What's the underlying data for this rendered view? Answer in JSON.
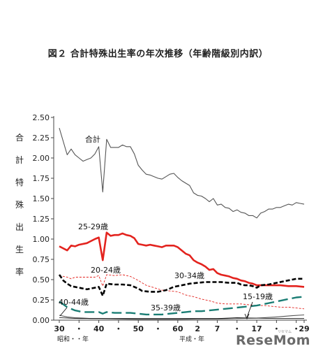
{
  "title": "図２ 合計特殊出生率の年次推移（年齢階級別内訳）",
  "logo": "ReseMom",
  "logo_sub": "リセマム",
  "chart_data": {
    "type": "line",
    "title": "図２ 合計特殊出生率の年次推移（年齢階級別内訳）",
    "ylabel_chars": [
      "合",
      "計",
      "特",
      "殊",
      "出",
      "生",
      "率"
    ],
    "ylim": [
      0,
      2.5
    ],
    "yticks": [
      "0.00",
      "0.25",
      "0.50",
      "0.75",
      "1.00",
      "1.25",
      "1.50",
      "1.75",
      "2.00",
      "2.25",
      "2.50"
    ],
    "x_ticks": [
      {
        "year": 1955,
        "label": "30"
      },
      {
        "year": 1960,
        "label": "・"
      },
      {
        "year": 1965,
        "label": "40"
      },
      {
        "year": 1970,
        "label": "・"
      },
      {
        "year": 1975,
        "label": "50"
      },
      {
        "year": 1980,
        "label": "・"
      },
      {
        "year": 1985,
        "label": "60"
      },
      {
        "year": 1990,
        "label": "2"
      },
      {
        "year": 1995,
        "label": "7"
      },
      {
        "year": 2000,
        "label": "・"
      },
      {
        "year": 2005,
        "label": "17"
      },
      {
        "year": 2010,
        "label": "・"
      },
      {
        "year": 2015,
        "label": "・"
      },
      {
        "year": 2017,
        "label": "29"
      }
    ],
    "era_labels": {
      "showa": "昭和・・年",
      "heisei": "平成・年"
    },
    "xlim": [
      1955,
      2017
    ],
    "series": [
      {
        "name": "合計",
        "color": "#555555",
        "style": "solid-thin",
        "points": [
          [
            1955,
            2.37
          ],
          [
            1957,
            2.04
          ],
          [
            1958,
            2.11
          ],
          [
            1959,
            2.04
          ],
          [
            1960,
            2.0
          ],
          [
            1961,
            1.96
          ],
          [
            1962,
            1.98
          ],
          [
            1963,
            2.0
          ],
          [
            1964,
            2.05
          ],
          [
            1965,
            2.14
          ],
          [
            1966,
            1.58
          ],
          [
            1967,
            2.23
          ],
          [
            1968,
            2.13
          ],
          [
            1969,
            2.13
          ],
          [
            1970,
            2.13
          ],
          [
            1971,
            2.16
          ],
          [
            1972,
            2.14
          ],
          [
            1973,
            2.14
          ],
          [
            1974,
            2.05
          ],
          [
            1975,
            1.91
          ],
          [
            1976,
            1.85
          ],
          [
            1977,
            1.8
          ],
          [
            1978,
            1.79
          ],
          [
            1979,
            1.77
          ],
          [
            1980,
            1.75
          ],
          [
            1981,
            1.74
          ],
          [
            1982,
            1.77
          ],
          [
            1983,
            1.8
          ],
          [
            1984,
            1.81
          ],
          [
            1985,
            1.76
          ],
          [
            1986,
            1.72
          ],
          [
            1987,
            1.69
          ],
          [
            1988,
            1.66
          ],
          [
            1989,
            1.57
          ],
          [
            1990,
            1.54
          ],
          [
            1991,
            1.53
          ],
          [
            1992,
            1.5
          ],
          [
            1993,
            1.46
          ],
          [
            1994,
            1.5
          ],
          [
            1995,
            1.42
          ],
          [
            1996,
            1.43
          ],
          [
            1997,
            1.39
          ],
          [
            1998,
            1.38
          ],
          [
            1999,
            1.34
          ],
          [
            2000,
            1.36
          ],
          [
            2001,
            1.33
          ],
          [
            2002,
            1.32
          ],
          [
            2003,
            1.29
          ],
          [
            2004,
            1.29
          ],
          [
            2005,
            1.26
          ],
          [
            2006,
            1.32
          ],
          [
            2007,
            1.34
          ],
          [
            2008,
            1.37
          ],
          [
            2009,
            1.37
          ],
          [
            2010,
            1.39
          ],
          [
            2011,
            1.39
          ],
          [
            2012,
            1.41
          ],
          [
            2013,
            1.43
          ],
          [
            2014,
            1.42
          ],
          [
            2015,
            1.45
          ],
          [
            2016,
            1.44
          ],
          [
            2017,
            1.43
          ]
        ]
      },
      {
        "name": "25-29歳",
        "color": "#e3231e",
        "style": "solid-thick",
        "points": [
          [
            1955,
            0.91
          ],
          [
            1957,
            0.86
          ],
          [
            1958,
            0.92
          ],
          [
            1959,
            0.91
          ],
          [
            1960,
            0.93
          ],
          [
            1962,
            0.95
          ],
          [
            1964,
            1.0
          ],
          [
            1965,
            1.02
          ],
          [
            1966,
            0.74
          ],
          [
            1967,
            1.08
          ],
          [
            1968,
            1.04
          ],
          [
            1969,
            1.05
          ],
          [
            1970,
            1.05
          ],
          [
            1971,
            1.07
          ],
          [
            1972,
            1.05
          ],
          [
            1973,
            1.04
          ],
          [
            1974,
            1.01
          ],
          [
            1975,
            0.94
          ],
          [
            1976,
            0.93
          ],
          [
            1977,
            0.92
          ],
          [
            1978,
            0.93
          ],
          [
            1979,
            0.92
          ],
          [
            1980,
            0.91
          ],
          [
            1981,
            0.9
          ],
          [
            1982,
            0.92
          ],
          [
            1983,
            0.92
          ],
          [
            1984,
            0.92
          ],
          [
            1985,
            0.9
          ],
          [
            1986,
            0.86
          ],
          [
            1987,
            0.82
          ],
          [
            1988,
            0.8
          ],
          [
            1989,
            0.74
          ],
          [
            1990,
            0.71
          ],
          [
            1991,
            0.69
          ],
          [
            1992,
            0.66
          ],
          [
            1993,
            0.62
          ],
          [
            1994,
            0.63
          ],
          [
            1995,
            0.58
          ],
          [
            1996,
            0.56
          ],
          [
            1997,
            0.55
          ],
          [
            1998,
            0.54
          ],
          [
            1999,
            0.52
          ],
          [
            2000,
            0.51
          ],
          [
            2001,
            0.49
          ],
          [
            2002,
            0.48
          ],
          [
            2003,
            0.46
          ],
          [
            2004,
            0.45
          ],
          [
            2005,
            0.43
          ],
          [
            2007,
            0.43
          ],
          [
            2009,
            0.43
          ],
          [
            2011,
            0.43
          ],
          [
            2013,
            0.42
          ],
          [
            2015,
            0.42
          ],
          [
            2017,
            0.41
          ]
        ]
      },
      {
        "name": "20-24歳",
        "color": "#e3231e",
        "style": "dashed-thin",
        "points": [
          [
            1955,
            0.55
          ],
          [
            1957,
            0.53
          ],
          [
            1958,
            0.51
          ],
          [
            1959,
            0.53
          ],
          [
            1960,
            0.53
          ],
          [
            1962,
            0.53
          ],
          [
            1964,
            0.53
          ],
          [
            1965,
            0.55
          ],
          [
            1966,
            0.42
          ],
          [
            1967,
            0.56
          ],
          [
            1969,
            0.55
          ],
          [
            1971,
            0.56
          ],
          [
            1973,
            0.54
          ],
          [
            1975,
            0.49
          ],
          [
            1977,
            0.43
          ],
          [
            1979,
            0.4
          ],
          [
            1981,
            0.37
          ],
          [
            1983,
            0.36
          ],
          [
            1985,
            0.35
          ],
          [
            1987,
            0.31
          ],
          [
            1989,
            0.29
          ],
          [
            1991,
            0.26
          ],
          [
            1993,
            0.24
          ],
          [
            1995,
            0.21
          ],
          [
            1997,
            0.2
          ],
          [
            1999,
            0.2
          ],
          [
            2001,
            0.2
          ],
          [
            2003,
            0.19
          ],
          [
            2005,
            0.18
          ],
          [
            2007,
            0.18
          ],
          [
            2009,
            0.17
          ],
          [
            2011,
            0.16
          ],
          [
            2013,
            0.16
          ],
          [
            2015,
            0.15
          ],
          [
            2017,
            0.14
          ]
        ]
      },
      {
        "name": "30-34歳",
        "color": "#000000",
        "style": "dashed-thick",
        "points": [
          [
            1955,
            0.56
          ],
          [
            1956,
            0.49
          ],
          [
            1957,
            0.45
          ],
          [
            1958,
            0.42
          ],
          [
            1960,
            0.4
          ],
          [
            1962,
            0.38
          ],
          [
            1964,
            0.4
          ],
          [
            1965,
            0.41
          ],
          [
            1966,
            0.3
          ],
          [
            1967,
            0.45
          ],
          [
            1969,
            0.44
          ],
          [
            1971,
            0.44
          ],
          [
            1973,
            0.43
          ],
          [
            1975,
            0.39
          ],
          [
            1976,
            0.36
          ],
          [
            1978,
            0.35
          ],
          [
            1980,
            0.35
          ],
          [
            1982,
            0.37
          ],
          [
            1984,
            0.41
          ],
          [
            1986,
            0.43
          ],
          [
            1988,
            0.45
          ],
          [
            1990,
            0.46
          ],
          [
            1992,
            0.47
          ],
          [
            1994,
            0.47
          ],
          [
            1996,
            0.47
          ],
          [
            1998,
            0.46
          ],
          [
            2000,
            0.46
          ],
          [
            2001,
            0.44
          ],
          [
            2002,
            0.43
          ],
          [
            2003,
            0.43
          ],
          [
            2004,
            0.42
          ],
          [
            2005,
            0.4
          ],
          [
            2006,
            0.43
          ],
          [
            2008,
            0.44
          ],
          [
            2010,
            0.46
          ],
          [
            2012,
            0.48
          ],
          [
            2014,
            0.5
          ],
          [
            2015,
            0.51
          ],
          [
            2017,
            0.51
          ]
        ]
      },
      {
        "name": "35-39歳",
        "color": "#1a7d74",
        "style": "longdash-thick",
        "points": [
          [
            1955,
            0.23
          ],
          [
            1957,
            0.16
          ],
          [
            1959,
            0.12
          ],
          [
            1961,
            0.1
          ],
          [
            1963,
            0.1
          ],
          [
            1965,
            0.1
          ],
          [
            1966,
            0.08
          ],
          [
            1967,
            0.1
          ],
          [
            1969,
            0.09
          ],
          [
            1971,
            0.09
          ],
          [
            1973,
            0.09
          ],
          [
            1975,
            0.08
          ],
          [
            1977,
            0.07
          ],
          [
            1979,
            0.07
          ],
          [
            1981,
            0.07
          ],
          [
            1983,
            0.08
          ],
          [
            1985,
            0.09
          ],
          [
            1987,
            0.1
          ],
          [
            1989,
            0.11
          ],
          [
            1991,
            0.11
          ],
          [
            1993,
            0.12
          ],
          [
            1995,
            0.13
          ],
          [
            1997,
            0.14
          ],
          [
            1999,
            0.15
          ],
          [
            2001,
            0.16
          ],
          [
            2003,
            0.17
          ],
          [
            2005,
            0.18
          ],
          [
            2007,
            0.2
          ],
          [
            2009,
            0.22
          ],
          [
            2011,
            0.24
          ],
          [
            2013,
            0.26
          ],
          [
            2015,
            0.28
          ],
          [
            2017,
            0.29
          ]
        ]
      },
      {
        "name": "40-44歳",
        "color": "#555555",
        "style": "solid-thin",
        "points": [
          [
            1955,
            0.06
          ],
          [
            1957,
            0.04
          ],
          [
            1959,
            0.03
          ],
          [
            1961,
            0.025
          ],
          [
            1963,
            0.02
          ],
          [
            1965,
            0.02
          ],
          [
            1970,
            0.015
          ],
          [
            1975,
            0.01
          ],
          [
            1980,
            0.01
          ],
          [
            1985,
            0.01
          ],
          [
            1990,
            0.015
          ],
          [
            1995,
            0.015
          ],
          [
            2000,
            0.02
          ],
          [
            2005,
            0.025
          ],
          [
            2010,
            0.04
          ],
          [
            2014,
            0.055
          ],
          [
            2017,
            0.065
          ]
        ]
      },
      {
        "name": "15-19歳",
        "color": "#000000",
        "style": "solid-hair",
        "points": [
          [
            1955,
            0.03
          ],
          [
            1960,
            0.02
          ],
          [
            1965,
            0.02
          ],
          [
            1970,
            0.02
          ],
          [
            1975,
            0.02
          ],
          [
            1980,
            0.02
          ],
          [
            1985,
            0.02
          ],
          [
            1990,
            0.02
          ],
          [
            1995,
            0.02
          ],
          [
            2000,
            0.03
          ],
          [
            2005,
            0.025
          ],
          [
            2010,
            0.02
          ],
          [
            2015,
            0.02
          ],
          [
            2017,
            0.02
          ]
        ]
      }
    ],
    "annotations": [
      {
        "text": "合計",
        "series": "合計"
      },
      {
        "text": "25-29歳",
        "series": "25-29歳"
      },
      {
        "text": "20-24歳",
        "series": "20-24歳"
      },
      {
        "text": "30-34歳",
        "series": "30-34歳"
      },
      {
        "text": "35-39歳",
        "series": "35-39歳"
      },
      {
        "text": "40-44歳",
        "series": "40-44歳"
      },
      {
        "text": "15-19歳",
        "series": "15-19歳"
      }
    ]
  }
}
